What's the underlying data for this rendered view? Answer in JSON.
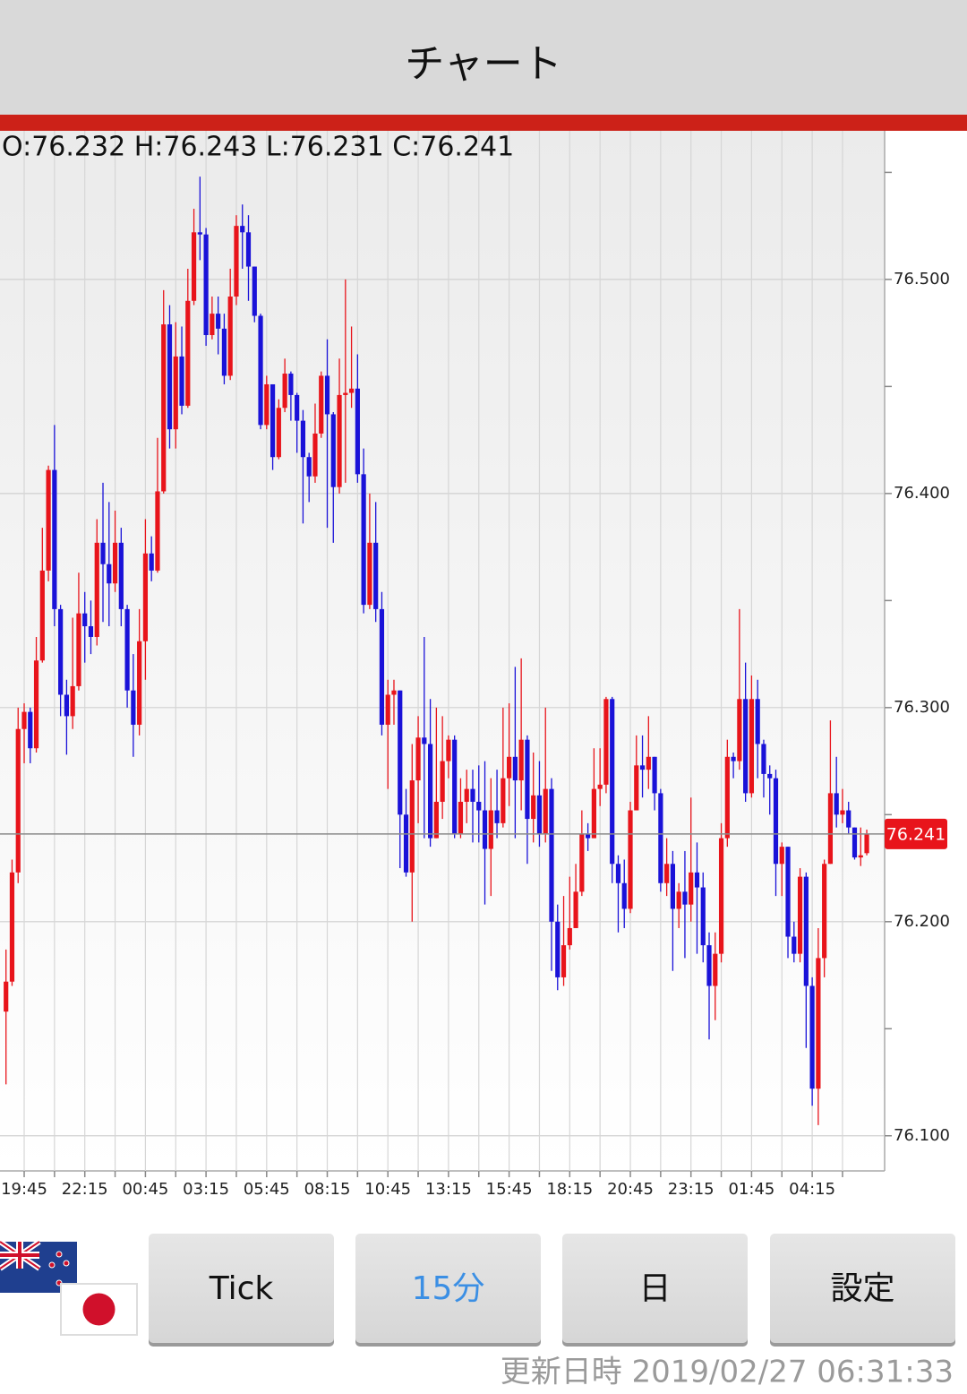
{
  "header": {
    "title": "チャート"
  },
  "chart_data": {
    "type": "candlestick",
    "ohlc_label": "O:76.232 H:76.243 L:76.231 C:76.241",
    "categories": [
      null,
      null,
      null,
      "19:45",
      null,
      null,
      null,
      null,
      null,
      null,
      null,
      null,
      null,
      "22:15",
      null,
      null,
      null,
      null,
      null,
      null,
      null,
      null,
      null,
      "00:45",
      null,
      null,
      null,
      null,
      null,
      null,
      null,
      null,
      null,
      "03:15",
      null,
      null,
      null,
      null,
      null,
      null,
      null,
      null,
      null,
      "05:45",
      null,
      null,
      null,
      null,
      null,
      null,
      null,
      null,
      null,
      "08:15",
      null,
      null,
      null,
      null,
      null,
      null,
      null,
      null,
      null,
      "10:45",
      null,
      null,
      null,
      null,
      null,
      null,
      null,
      null,
      null,
      "13:15",
      null,
      null,
      null,
      null,
      null,
      null,
      null,
      null,
      null,
      "15:45",
      null,
      null,
      null,
      null,
      null,
      null,
      null,
      null,
      null,
      "18:15",
      null,
      null,
      null,
      null,
      null,
      null,
      null,
      null,
      null,
      "20:45",
      null,
      null,
      null,
      null,
      null,
      null,
      null,
      null,
      null,
      "23:15",
      null,
      null,
      null,
      null,
      null,
      null,
      null,
      null,
      null,
      "01:45",
      null,
      null,
      null,
      null,
      null,
      null,
      null,
      null,
      null,
      "04:15",
      null,
      null,
      null,
      null,
      null,
      null,
      null,
      null,
      null
    ],
    "ohlc": [
      [
        76.158,
        76.187,
        76.124,
        76.172
      ],
      [
        76.172,
        76.229,
        76.17,
        76.223
      ],
      [
        76.223,
        76.3,
        76.218,
        76.29
      ],
      [
        76.29,
        76.302,
        76.274,
        76.298
      ],
      [
        76.298,
        76.3,
        76.274,
        76.281
      ],
      [
        76.281,
        76.333,
        76.279,
        76.322
      ],
      [
        76.322,
        76.384,
        76.321,
        76.364
      ],
      [
        76.364,
        76.413,
        76.359,
        76.411
      ],
      [
        76.411,
        76.432,
        76.338,
        76.346
      ],
      [
        76.346,
        76.348,
        76.296,
        76.306
      ],
      [
        76.306,
        76.313,
        76.278,
        76.296
      ],
      [
        76.296,
        76.342,
        76.29,
        76.31
      ],
      [
        76.31,
        76.363,
        76.308,
        76.344
      ],
      [
        76.344,
        76.354,
        76.321,
        76.338
      ],
      [
        76.338,
        76.35,
        76.325,
        76.333
      ],
      [
        76.333,
        76.388,
        76.329,
        76.377
      ],
      [
        76.377,
        76.405,
        76.34,
        76.367
      ],
      [
        76.367,
        76.396,
        76.338,
        76.358
      ],
      [
        76.358,
        76.392,
        76.354,
        76.377
      ],
      [
        76.377,
        76.384,
        76.338,
        76.346
      ],
      [
        76.346,
        76.348,
        76.3,
        76.308
      ],
      [
        76.308,
        76.325,
        76.277,
        76.292
      ],
      [
        76.292,
        76.346,
        76.287,
        76.331
      ],
      [
        76.331,
        76.388,
        76.313,
        76.372
      ],
      [
        76.372,
        76.38,
        76.359,
        76.364
      ],
      [
        76.364,
        76.426,
        76.363,
        76.401
      ],
      [
        76.401,
        76.495,
        76.4,
        76.479
      ],
      [
        76.479,
        76.488,
        76.421,
        76.43
      ],
      [
        76.43,
        76.48,
        76.421,
        76.464
      ],
      [
        76.464,
        76.478,
        76.437,
        76.441
      ],
      [
        76.441,
        76.505,
        76.44,
        76.49
      ],
      [
        76.49,
        76.533,
        76.488,
        76.522
      ],
      [
        76.522,
        76.548,
        76.509,
        76.521
      ],
      [
        76.521,
        76.524,
        76.469,
        76.474
      ],
      [
        76.474,
        76.492,
        76.472,
        76.484
      ],
      [
        76.484,
        76.492,
        76.465,
        76.477
      ],
      [
        76.477,
        76.484,
        76.451,
        76.455
      ],
      [
        76.455,
        76.505,
        76.453,
        76.492
      ],
      [
        76.492,
        76.53,
        76.488,
        76.525
      ],
      [
        76.525,
        76.535,
        76.505,
        76.522
      ],
      [
        76.522,
        76.53,
        76.49,
        76.506
      ],
      [
        76.506,
        76.506,
        76.48,
        76.483
      ],
      [
        76.483,
        76.484,
        76.43,
        76.432
      ],
      [
        76.432,
        76.455,
        76.43,
        76.451
      ],
      [
        76.451,
        76.451,
        76.411,
        76.417
      ],
      [
        76.417,
        76.444,
        76.416,
        76.44
      ],
      [
        76.44,
        76.463,
        76.438,
        76.456
      ],
      [
        76.456,
        76.457,
        76.434,
        76.446
      ],
      [
        76.446,
        76.447,
        76.419,
        76.434
      ],
      [
        76.434,
        76.439,
        76.386,
        76.417
      ],
      [
        76.417,
        76.419,
        76.396,
        76.408
      ],
      [
        76.408,
        76.442,
        76.405,
        76.428
      ],
      [
        76.428,
        76.457,
        76.426,
        76.455
      ],
      [
        76.455,
        76.472,
        76.384,
        76.437
      ],
      [
        76.437,
        76.438,
        76.377,
        76.403
      ],
      [
        76.403,
        76.463,
        76.4,
        76.446
      ],
      [
        76.446,
        76.5,
        76.405,
        76.447
      ],
      [
        76.447,
        76.478,
        76.44,
        76.449
      ],
      [
        76.449,
        76.465,
        76.405,
        76.409
      ],
      [
        76.409,
        76.421,
        76.344,
        76.348
      ],
      [
        76.348,
        76.4,
        76.346,
        76.377
      ],
      [
        76.377,
        76.396,
        76.34,
        76.346
      ],
      [
        76.346,
        76.354,
        76.287,
        76.292
      ],
      [
        76.292,
        76.313,
        76.262,
        76.306
      ],
      [
        76.306,
        76.313,
        76.292,
        76.308
      ],
      [
        76.308,
        76.308,
        76.225,
        76.25
      ],
      [
        76.25,
        76.262,
        76.221,
        76.223
      ],
      [
        76.223,
        76.283,
        76.2,
        76.266
      ],
      [
        76.266,
        76.296,
        76.246,
        76.286
      ],
      [
        76.286,
        76.333,
        76.239,
        76.283
      ],
      [
        76.283,
        76.304,
        76.235,
        76.239
      ],
      [
        76.239,
        76.3,
        76.239,
        76.256
      ],
      [
        76.256,
        76.296,
        76.248,
        76.275
      ],
      [
        76.275,
        76.287,
        76.267,
        76.285
      ],
      [
        76.285,
        76.287,
        76.239,
        76.241
      ],
      [
        76.241,
        76.267,
        76.239,
        76.256
      ],
      [
        76.256,
        76.271,
        76.246,
        76.262
      ],
      [
        76.262,
        76.271,
        76.237,
        76.256
      ],
      [
        76.256,
        76.273,
        76.237,
        76.252
      ],
      [
        76.252,
        76.275,
        76.208,
        76.234
      ],
      [
        76.234,
        76.267,
        76.212,
        76.252
      ],
      [
        76.252,
        76.271,
        76.239,
        76.246
      ],
      [
        76.246,
        76.3,
        76.244,
        76.267
      ],
      [
        76.267,
        76.302,
        76.254,
        76.277
      ],
      [
        76.277,
        76.319,
        76.239,
        76.266
      ],
      [
        76.266,
        76.323,
        76.252,
        76.285
      ],
      [
        76.285,
        76.287,
        76.227,
        76.248
      ],
      [
        76.248,
        76.279,
        76.237,
        76.259
      ],
      [
        76.259,
        76.275,
        76.235,
        76.241
      ],
      [
        76.241,
        76.3,
        76.237,
        76.262
      ],
      [
        76.262,
        76.267,
        76.177,
        76.2
      ],
      [
        76.2,
        76.208,
        76.168,
        76.174
      ],
      [
        76.174,
        76.212,
        76.17,
        76.189
      ],
      [
        76.189,
        76.221,
        76.187,
        76.197
      ],
      [
        76.197,
        76.227,
        76.197,
        76.214
      ],
      [
        76.214,
        76.252,
        76.212,
        76.241
      ],
      [
        76.241,
        76.246,
        76.233,
        76.239
      ],
      [
        76.239,
        76.281,
        76.239,
        76.262
      ],
      [
        76.262,
        76.281,
        76.254,
        76.264
      ],
      [
        76.264,
        76.305,
        76.26,
        76.304
      ],
      [
        76.304,
        76.305,
        76.218,
        76.227
      ],
      [
        76.227,
        76.231,
        76.195,
        76.218
      ],
      [
        76.218,
        76.229,
        76.197,
        76.206
      ],
      [
        76.206,
        76.256,
        76.204,
        76.252
      ],
      [
        76.252,
        76.287,
        76.252,
        76.273
      ],
      [
        76.273,
        76.287,
        76.258,
        76.271
      ],
      [
        76.271,
        76.296,
        76.262,
        76.277
      ],
      [
        76.277,
        76.277,
        76.252,
        76.26
      ],
      [
        76.26,
        76.262,
        76.214,
        76.218
      ],
      [
        76.218,
        76.239,
        76.212,
        76.227
      ],
      [
        76.227,
        76.233,
        76.177,
        76.206
      ],
      [
        76.206,
        76.218,
        76.197,
        76.214
      ],
      [
        76.214,
        76.233,
        76.183,
        76.208
      ],
      [
        76.208,
        76.258,
        76.2,
        76.223
      ],
      [
        76.223,
        76.237,
        76.185,
        76.216
      ],
      [
        76.216,
        76.223,
        76.181,
        76.189
      ],
      [
        76.189,
        76.195,
        76.145,
        76.17
      ],
      [
        76.17,
        76.195,
        76.154,
        76.185
      ],
      [
        76.185,
        76.246,
        76.181,
        76.239
      ],
      [
        76.239,
        76.285,
        76.235,
        76.277
      ],
      [
        76.277,
        76.279,
        76.267,
        76.275
      ],
      [
        76.275,
        76.346,
        76.271,
        76.304
      ],
      [
        76.304,
        76.321,
        76.256,
        76.26
      ],
      [
        76.26,
        76.315,
        76.258,
        76.304
      ],
      [
        76.304,
        76.313,
        76.267,
        76.283
      ],
      [
        76.283,
        76.285,
        76.258,
        76.269
      ],
      [
        76.269,
        76.273,
        76.25,
        76.267
      ],
      [
        76.267,
        76.271,
        76.212,
        76.227
      ],
      [
        76.227,
        76.237,
        76.212,
        76.235
      ],
      [
        76.235,
        76.235,
        76.183,
        76.193
      ],
      [
        76.193,
        76.2,
        76.181,
        76.185
      ],
      [
        76.185,
        76.225,
        76.181,
        76.221
      ],
      [
        76.221,
        76.223,
        76.141,
        76.17
      ],
      [
        76.17,
        76.174,
        76.114,
        76.122
      ],
      [
        76.122,
        76.197,
        76.105,
        76.183
      ],
      [
        76.183,
        76.229,
        76.174,
        76.227
      ],
      [
        76.227,
        76.294,
        76.227,
        76.26
      ],
      [
        76.26,
        76.277,
        76.244,
        76.25
      ],
      [
        76.25,
        76.262,
        76.246,
        76.252
      ],
      [
        76.252,
        76.256,
        76.241,
        76.244
      ],
      [
        76.244,
        76.244,
        76.229,
        76.23
      ],
      [
        76.23,
        76.244,
        76.226,
        76.231
      ],
      [
        76.232,
        76.243,
        76.231,
        76.241
      ]
    ],
    "up_color": "#e8141b",
    "down_color": "#1a12d8",
    "ylim": [
      76.084,
      76.569
    ],
    "yticks": [
      {
        "value": 76.1,
        "label": "76.100"
      },
      {
        "value": 76.2,
        "label": "76.200"
      },
      {
        "value": 76.3,
        "label": "76.300"
      },
      {
        "value": 76.4,
        "label": "76.400"
      },
      {
        "value": 76.5,
        "label": "76.500"
      }
    ],
    "yticks_minor": [
      76.15,
      76.25,
      76.35,
      76.45,
      76.55
    ],
    "last_price": 76.241,
    "last_price_color": "#e8141b",
    "grid": true
  },
  "buttons": [
    "Tick",
    "15分",
    "日",
    "設定"
  ],
  "selected_button": 1,
  "footer": "更新日時 2019/02/27 06:31:33"
}
